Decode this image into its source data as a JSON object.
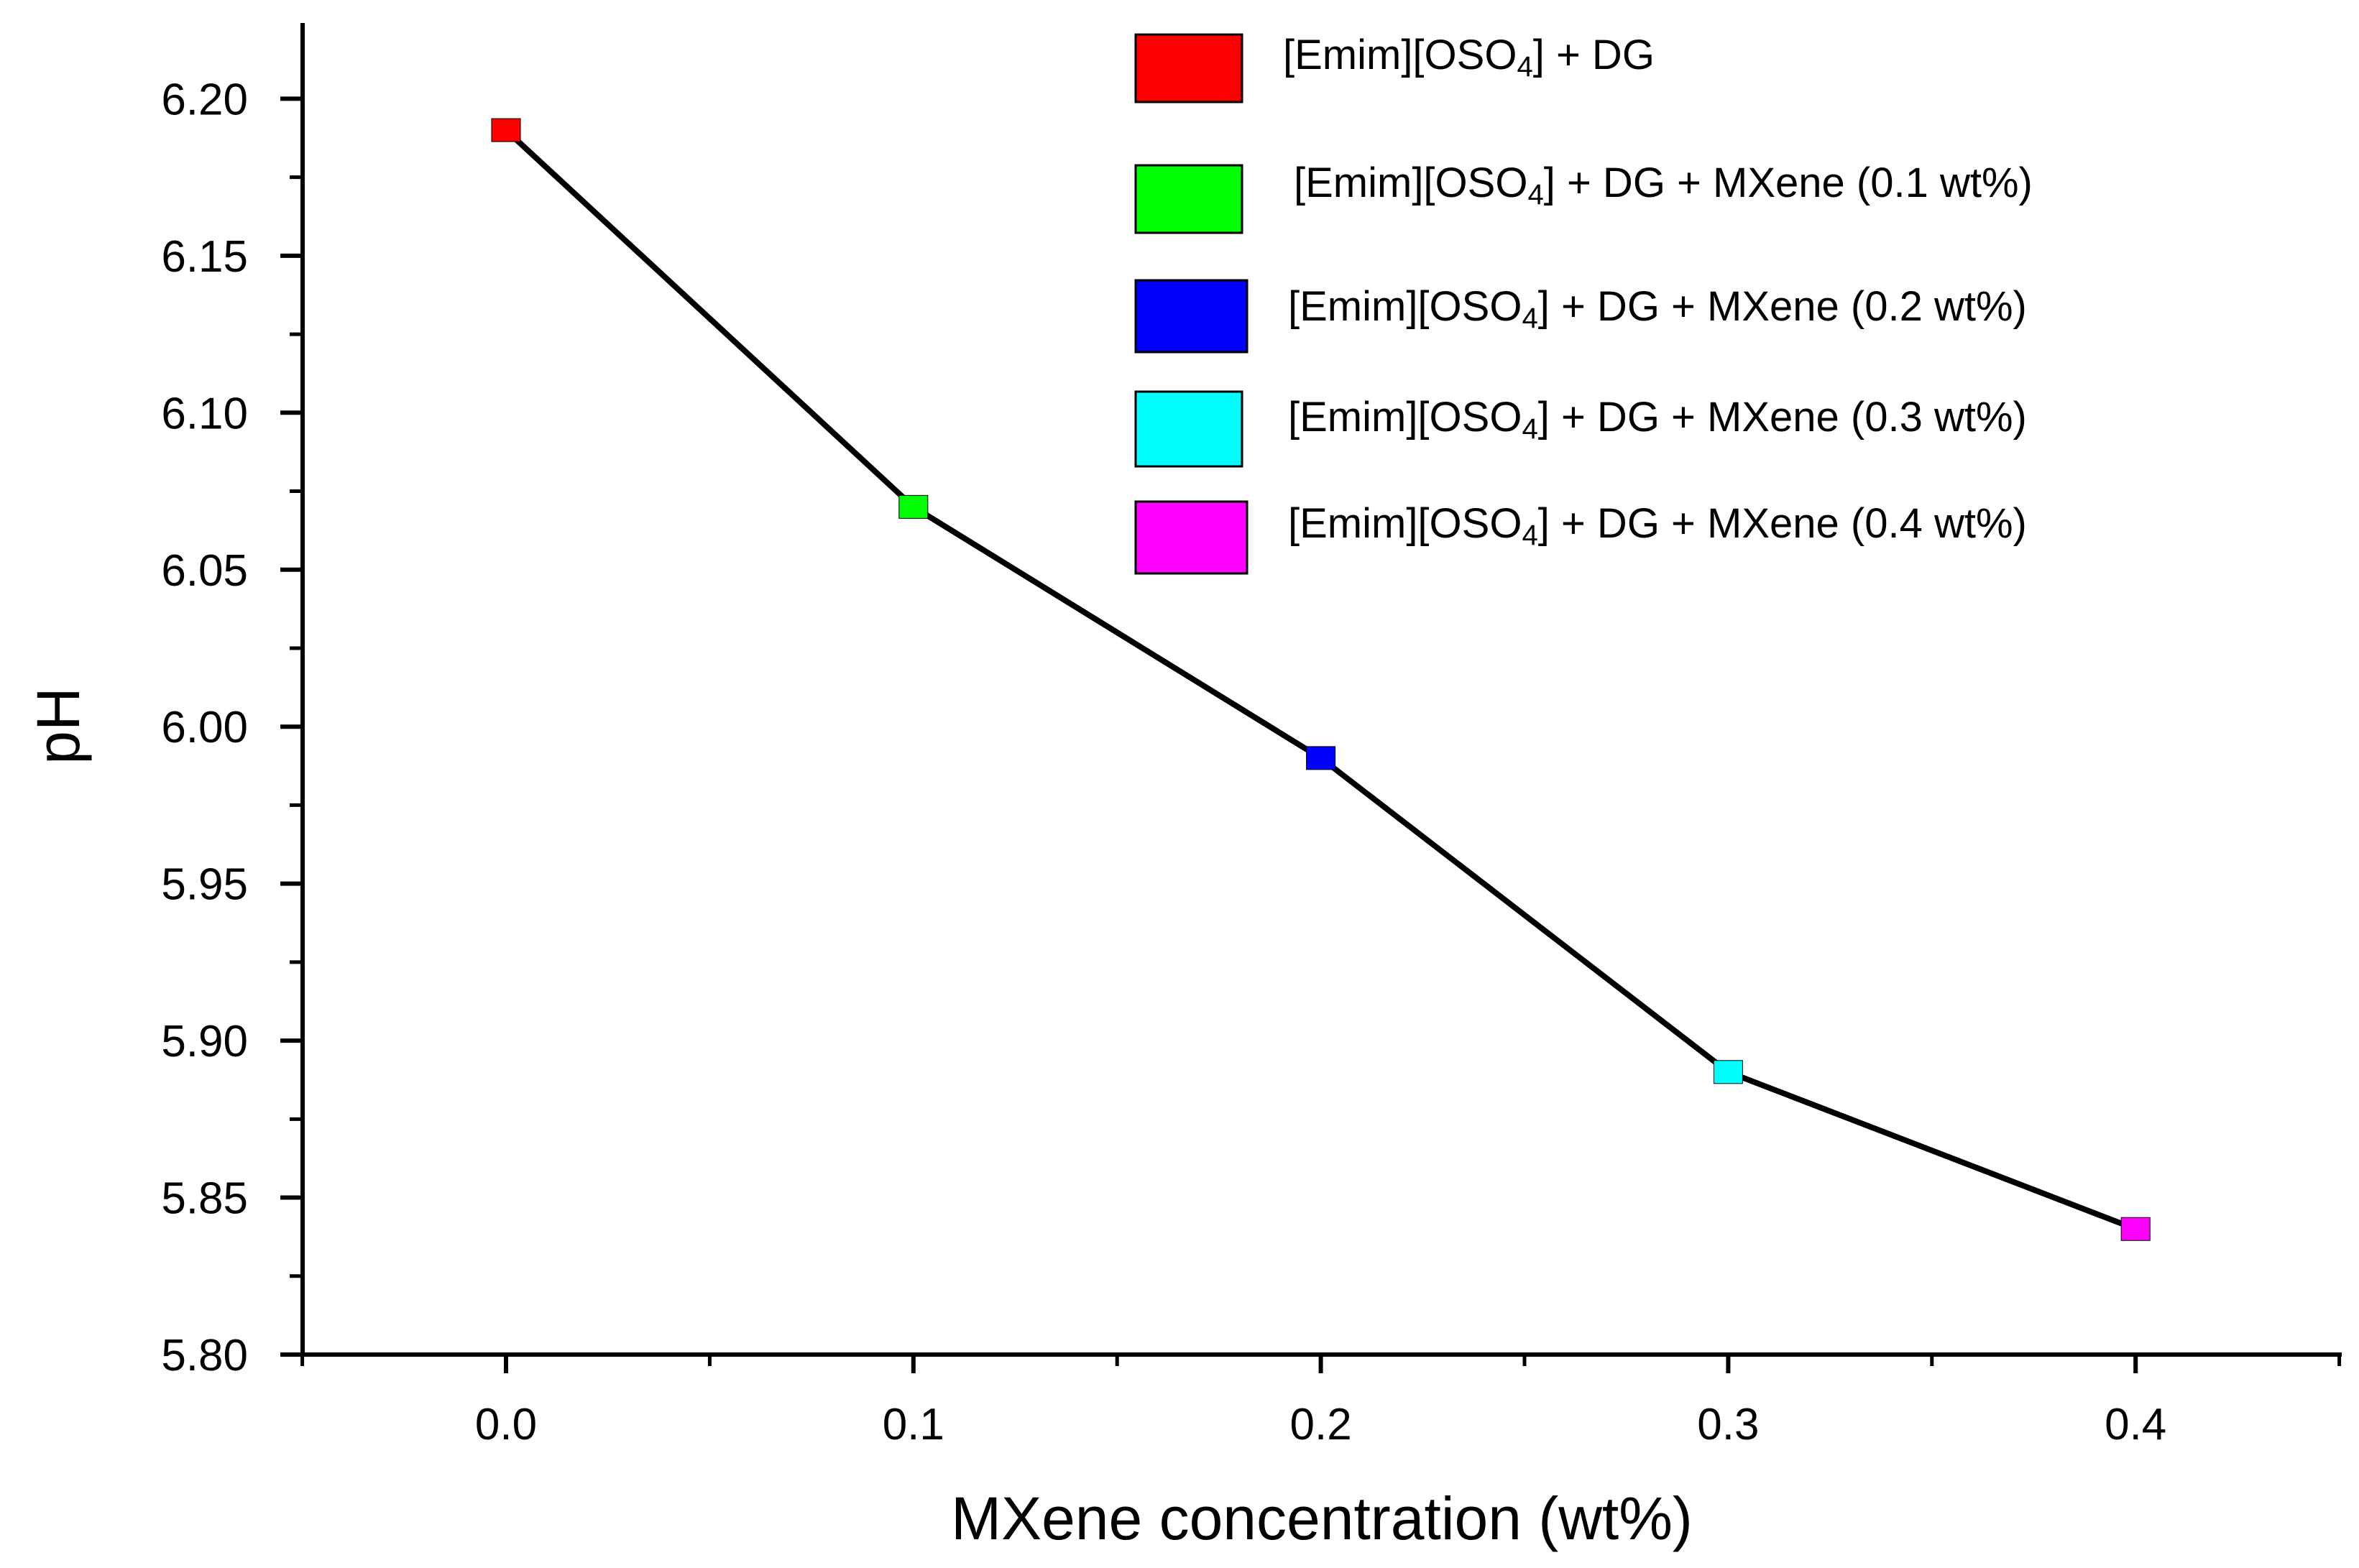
{
  "chart_data": {
    "type": "line",
    "title": "",
    "xlabel": "MXene concentration (wt%)",
    "ylabel": "pH",
    "xlim": [
      -0.05,
      0.45
    ],
    "ylim": [
      5.8,
      6.225
    ],
    "x_ticks": [
      "0.0",
      "0.1",
      "0.2",
      "0.3",
      "0.4"
    ],
    "x_tick_values": [
      0.0,
      0.1,
      0.2,
      0.3,
      0.4
    ],
    "y_ticks": [
      "5.80",
      "5.85",
      "5.90",
      "5.95",
      "6.00",
      "6.05",
      "6.10",
      "6.15",
      "6.20"
    ],
    "y_tick_values": [
      5.8,
      5.85,
      5.9,
      5.95,
      6.0,
      6.05,
      6.1,
      6.15,
      6.2
    ],
    "line_color": "#000000",
    "grid": false,
    "legend_position": "top-right",
    "series": [
      {
        "name": "[Emim][OSO4] + DG",
        "label_main": "[Emim][OSO",
        "label_sub": "4",
        "label_rest": "] + DG",
        "x": 0.0,
        "y": 6.19,
        "color": "#ff0000"
      },
      {
        "name": "[Emim][OSO4] + DG + MXene (0.1 wt%)",
        "label_main": "[Emim][OSO",
        "label_sub": "4",
        "label_rest": "] + DG + MXene (0.1 wt%)",
        "x": 0.1,
        "y": 6.07,
        "color": "#00ff00"
      },
      {
        "name": "[Emim][OSO4] + DG + MXene (0.2 wt%)",
        "label_main": "[Emim][OSO",
        "label_sub": "4",
        "label_rest": "] + DG + MXene (0.2 wt%)",
        "x": 0.2,
        "y": 5.99,
        "color": "#0000ff"
      },
      {
        "name": "[Emim][OSO4] + DG + MXene (0.3 wt%)",
        "label_main": "[Emim][OSO",
        "label_sub": "4",
        "label_rest": "] + DG + MXene (0.3 wt%)",
        "x": 0.3,
        "y": 5.89,
        "color": "#00ffff"
      },
      {
        "name": "[Emim][OSO4] + DG + MXene (0.4 wt%)",
        "label_main": "[Emim][OSO",
        "label_sub": "4",
        "label_rest": "] + DG + MXene (0.4 wt%)",
        "x": 0.4,
        "y": 5.84,
        "color": "#ff00ff"
      }
    ]
  }
}
